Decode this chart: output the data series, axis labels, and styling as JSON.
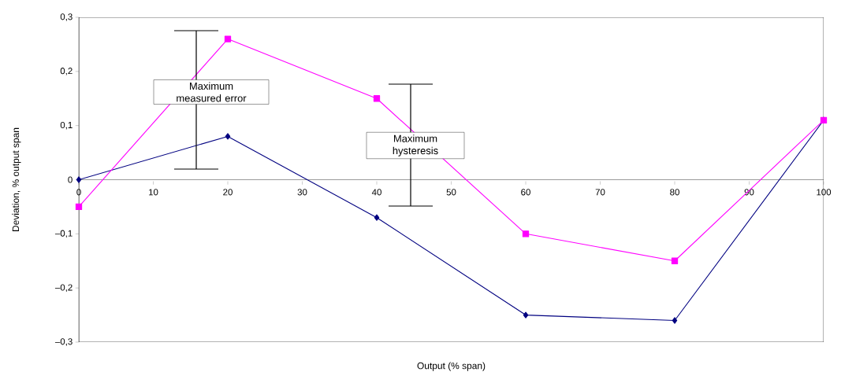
{
  "chart_data": {
    "type": "line",
    "xlabel": "Output (% span)",
    "ylabel": "Deviation, %  output span",
    "x": [
      0,
      20,
      40,
      60,
      80,
      100
    ],
    "series": [
      {
        "color": "#000080",
        "marker": "diamond",
        "values": [
          0,
          0.08,
          -0.07,
          -0.25,
          -0.26,
          0.11
        ]
      },
      {
        "color": "#ff00ff",
        "marker": "square",
        "values": [
          -0.05,
          0.26,
          0.15,
          -0.1,
          -0.15,
          0.11
        ]
      }
    ],
    "xlim": [
      0,
      100
    ],
    "ylim": [
      -0.3,
      0.3
    ],
    "xticks": [
      0,
      10,
      20,
      30,
      40,
      50,
      60,
      70,
      80,
      90,
      100
    ],
    "yticks": [
      {
        "value": -0.3,
        "label": "–0,3"
      },
      {
        "value": -0.2,
        "label": "–0,2"
      },
      {
        "value": -0.1,
        "label": "–0,1"
      },
      {
        "value": 0,
        "label": "0"
      },
      {
        "value": 0.1,
        "label": "0,1"
      },
      {
        "value": 0.2,
        "label": "0,2"
      },
      {
        "value": 0.3,
        "label": "0,3"
      }
    ],
    "annotations": [
      "Maximum measured error",
      "Maximum hysteresis"
    ],
    "grid": false
  }
}
